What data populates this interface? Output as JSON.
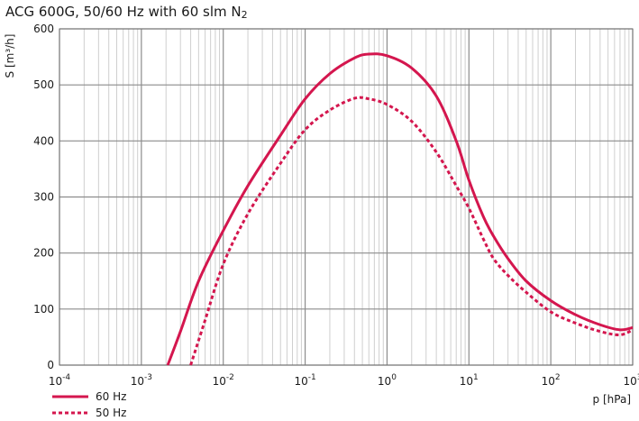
{
  "chart_data": {
    "type": "line",
    "title": "ACG 600G, 50/60 Hz with 60 slm N",
    "title_subscript": "2",
    "xlabel": "p [hPa]",
    "ylabel": "S [m³/h]",
    "x_scale": "log",
    "xlim": [
      0.0001,
      1000
    ],
    "ylim": [
      0,
      600
    ],
    "grid": true,
    "legend": "bottom-left",
    "x_ticks": [
      {
        "mant": "10",
        "exp": "-4"
      },
      {
        "mant": "10",
        "exp": "-3"
      },
      {
        "mant": "10",
        "exp": "-2"
      },
      {
        "mant": "10",
        "exp": "-1"
      },
      {
        "mant": "10",
        "exp": "0"
      },
      {
        "mant": "10",
        "exp": "1"
      },
      {
        "mant": "10",
        "exp": "2"
      },
      {
        "mant": "10",
        "exp": "3"
      }
    ],
    "y_ticks": [
      "0",
      "100",
      "200",
      "300",
      "400",
      "500",
      "600"
    ],
    "series": [
      {
        "name": "60 Hz",
        "color": "#d4164e",
        "dash": "solid",
        "points": [
          [
            0.0021,
            0
          ],
          [
            0.003,
            60
          ],
          [
            0.005,
            150
          ],
          [
            0.01,
            240
          ],
          [
            0.02,
            320
          ],
          [
            0.05,
            410
          ],
          [
            0.1,
            475
          ],
          [
            0.2,
            520
          ],
          [
            0.4,
            548
          ],
          [
            0.6,
            555
          ],
          [
            1,
            552
          ],
          [
            2,
            530
          ],
          [
            4,
            480
          ],
          [
            7,
            400
          ],
          [
            10,
            330
          ],
          [
            15,
            265
          ],
          [
            20,
            230
          ],
          [
            30,
            190
          ],
          [
            50,
            150
          ],
          [
            100,
            115
          ],
          [
            200,
            90
          ],
          [
            400,
            72
          ],
          [
            700,
            63
          ],
          [
            1000,
            67
          ]
        ]
      },
      {
        "name": "50 Hz",
        "color": "#d4164e",
        "dash": "dashed",
        "points": [
          [
            0.004,
            0
          ],
          [
            0.006,
            80
          ],
          [
            0.01,
            180
          ],
          [
            0.02,
            270
          ],
          [
            0.05,
            360
          ],
          [
            0.1,
            420
          ],
          [
            0.2,
            455
          ],
          [
            0.4,
            476
          ],
          [
            0.6,
            475
          ],
          [
            1,
            465
          ],
          [
            2,
            435
          ],
          [
            4,
            380
          ],
          [
            7,
            320
          ],
          [
            10,
            280
          ],
          [
            15,
            225
          ],
          [
            20,
            190
          ],
          [
            30,
            160
          ],
          [
            50,
            130
          ],
          [
            100,
            95
          ],
          [
            200,
            75
          ],
          [
            400,
            60
          ],
          [
            700,
            54
          ],
          [
            1000,
            63
          ]
        ]
      }
    ]
  }
}
